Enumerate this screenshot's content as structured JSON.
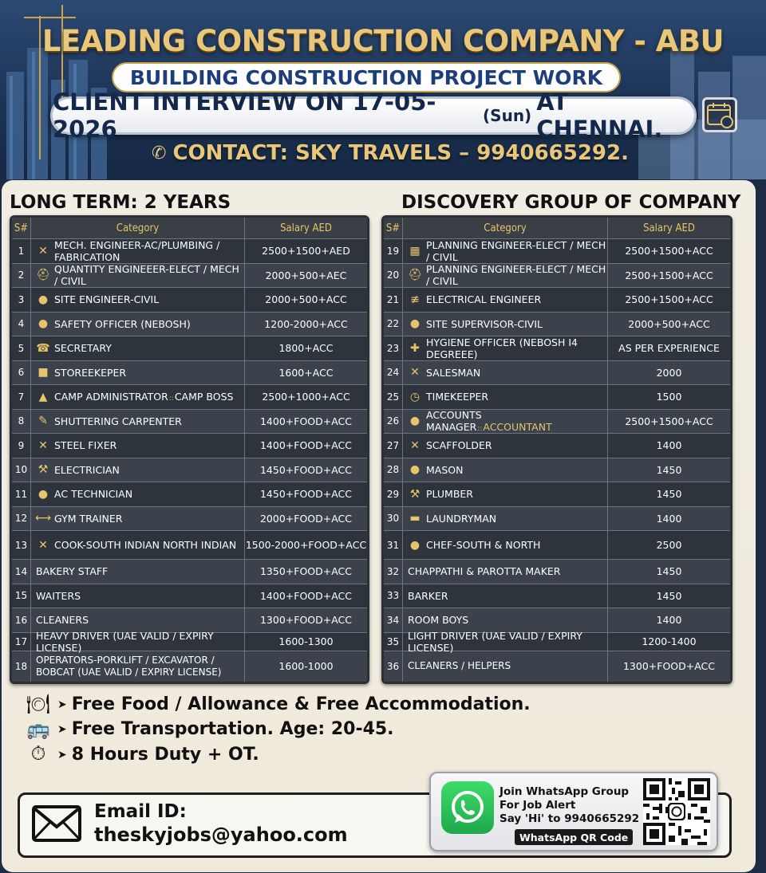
{
  "header": {
    "title": "LEADING CONSTRUCTION COMPANY - ABU DHABI",
    "subtitle": "BUILDING CONSTRUCTION PROJECT WORK",
    "interview_prefix": "CLIENT INTERVIEW ON 17-05-2026",
    "interview_day": "(Sun)",
    "interview_suffix": "AT CHENNAI.",
    "contact": "CONTACT: SKY TRAVELS – 9940665292."
  },
  "left": {
    "heading": "LONG TERM: 2 YEARS",
    "columns": [
      "S#",
      "Category",
      "Salary AED"
    ],
    "rows": [
      {
        "sn": "1",
        "icon": "tools-icon",
        "glyph": "✕",
        "category": "MECH. ENGINEER-AC/PLUMBING / FABRICATION",
        "salary": "2500+1500+AED"
      },
      {
        "sn": "2",
        "icon": "hardhat-icon",
        "glyph": "⛑",
        "category": "QUANTITY ENGINEEER-ELECT / MECH / CIVIL",
        "salary": "2000+500+AEC"
      },
      {
        "sn": "3",
        "icon": "worker-icon",
        "glyph": "●",
        "category": "SITE ENGINEER-CIVIL",
        "salary": "2000+500+ACC"
      },
      {
        "sn": "4",
        "icon": "safety-officer-icon",
        "glyph": "●",
        "category": "SAFETY OFFICER (NEBOSH)",
        "salary": "1200-2000+ACC"
      },
      {
        "sn": "5",
        "icon": "secretary-icon",
        "glyph": "☎",
        "category": "SECRETARY",
        "salary": "1800+ACC"
      },
      {
        "sn": "6",
        "icon": "briefcase-icon",
        "glyph": "■",
        "category": "STOREEKEPER",
        "salary": "1600+ACC"
      },
      {
        "sn": "7",
        "icon": "tent-icon",
        "glyph": "▲",
        "category": "CAMP ADMINISTRATOR",
        "category_extra": "::",
        "category_tail": "CAMP BOSS",
        "salary": "2500+1000+ACC"
      },
      {
        "sn": "8",
        "icon": "wrench-icon",
        "glyph": "✎",
        "category": "SHUTTERING CARPENTER",
        "salary": "1400+FOOD+ACC"
      },
      {
        "sn": "9",
        "icon": "cross-tools-icon",
        "glyph": "✕",
        "category": "STEEL FIXER",
        "salary": "1400+FOOD+ACC"
      },
      {
        "sn": "10",
        "icon": "drill-icon",
        "glyph": "⚒",
        "category": "ELECTRICIAN",
        "salary": "1450+FOOD+ACC"
      },
      {
        "sn": "11",
        "icon": "technician-icon",
        "glyph": "●",
        "category": "AC TECHNICIAN",
        "salary": "1450+FOOD+ACC"
      },
      {
        "sn": "12",
        "icon": "dumbbell-icon",
        "glyph": "⟷",
        "category": "GYM TRAINER",
        "salary": "2000+FOOD+ACC"
      },
      {
        "sn": "13",
        "icon": "cutlery-icon",
        "glyph": "✕",
        "category": "COOK-SOUTH INDIAN NORTH INDIAN",
        "salary": "1500-2000+FOOD+ACC"
      },
      {
        "sn": "14",
        "category": "BAKERY STAFF",
        "salary": "1350+FOOD+ACC"
      },
      {
        "sn": "15",
        "category": "WAITERS",
        "salary": "1400+FOOD+ACC"
      },
      {
        "sn": "16",
        "category": "CLEANERS",
        "salary": "1300+FOOD+ACC"
      },
      {
        "sn": "17",
        "category": "HEAVY DRIVER (UAE VALID / EXPIRY LICENSE)",
        "salary": "1600-1300"
      },
      {
        "sn": "18",
        "category": "OPERATORS-PORKLIFT / EXCAVATOR / BOBCAT (UAE VALID / EXPIRY LICENSE)",
        "salary": "1600-1000"
      }
    ]
  },
  "right": {
    "heading": "DISCOVERY GROUP OF COMPANY",
    "columns": [
      "S#",
      "Category",
      "Salary AED"
    ],
    "rows": [
      {
        "sn": "19",
        "icon": "blueprint-icon",
        "glyph": "▦",
        "category": "PLANNING ENGINEER-ELECT / MECH / CIVIL",
        "salary": "2500+1500+ACC"
      },
      {
        "sn": "20",
        "icon": "hardhat-icon",
        "glyph": "⛑",
        "category": "PLANNING ENGINEER-ELECT / MECH / CIVIL",
        "salary": "2500+1500+ACC"
      },
      {
        "sn": "21",
        "icon": "electrical-icon",
        "glyph": "≢",
        "category": "ELECTRICAL ENGINEER",
        "salary": "2500+1500+ACC"
      },
      {
        "sn": "22",
        "icon": "supervisor-icon",
        "glyph": "●",
        "category": "SITE SUPERVISOR-CIVIL",
        "salary": "2000+500+ACC"
      },
      {
        "sn": "23",
        "icon": "hygiene-icon",
        "glyph": "✚",
        "category": "HYGIENE OFFICER (NEBOSH I4 DEGREEE)",
        "salary": "AS PER EXPERIENCE"
      },
      {
        "sn": "24",
        "icon": "cross-tools-icon",
        "glyph": "✕",
        "category": "SALESMAN",
        "salary": "2000"
      },
      {
        "sn": "25",
        "icon": "clock-icon",
        "glyph": "◷",
        "category": "TIMEKEEPER",
        "salary": "1500"
      },
      {
        "sn": "26",
        "icon": "accountant-icon",
        "glyph": "●",
        "category": "ACCOUNTS MANAGER",
        "category_extra": "::",
        "category_tail": "ACCOUNTANT",
        "salary": "2500+1500+ACC"
      },
      {
        "sn": "27",
        "icon": "cross-tools-icon",
        "glyph": "✕",
        "category": "SCAFFOLDER",
        "salary": "1400"
      },
      {
        "sn": "28",
        "icon": "mason-icon",
        "glyph": "●",
        "category": "MASON",
        "salary": "1450"
      },
      {
        "sn": "29",
        "icon": "plumber-icon",
        "glyph": "⚒",
        "category": "PLUMBER",
        "salary": "1450"
      },
      {
        "sn": "30",
        "icon": "laundry-icon",
        "glyph": "▬",
        "category": "LAUNDRYMAN",
        "salary": "1400"
      },
      {
        "sn": "31",
        "icon": "chef-icon",
        "glyph": "●",
        "category": "CHEF-SOUTH & NORTH",
        "salary": "2500"
      },
      {
        "sn": "32",
        "category": "CHAPPATHI & PAROTTA MAKER",
        "salary": "1450"
      },
      {
        "sn": "33",
        "category": "BARKER",
        "salary": "1450"
      },
      {
        "sn": "34",
        "category": "ROOM BOYS",
        "salary": "1400"
      },
      {
        "sn": "35",
        "category": "LIGHT DRIVER (UAE VALID / EXPIRY LICENSE)",
        "salary": "1200-1400"
      },
      {
        "sn": "36",
        "category": "CLEANERS / HELPERS",
        "salary": "1300+FOOD+ACC"
      }
    ]
  },
  "benefits": [
    {
      "icon": "plate-icon",
      "text": "Free Food / Allowance & Free Accommodation."
    },
    {
      "icon": "bus-icon",
      "text": "Free Transportation. Age: 20-45."
    },
    {
      "icon": "stopwatch-icon",
      "text": "8 Hours Duty + OT."
    }
  ],
  "footer": {
    "email_label": "Email ID:",
    "email": "theskyjobs@yahoo.com",
    "wa_line1": "Join WhatsApp Group",
    "wa_line2": "For Job Alert",
    "wa_line3": "Say 'Hi' to 9940665292",
    "wa_qr_label": "WhatsApp QR Code"
  },
  "colors": {
    "gold": "#e7c46b",
    "navy": "#13284a",
    "table_dark": "#2e343c",
    "whatsapp_green": "#25d366"
  }
}
